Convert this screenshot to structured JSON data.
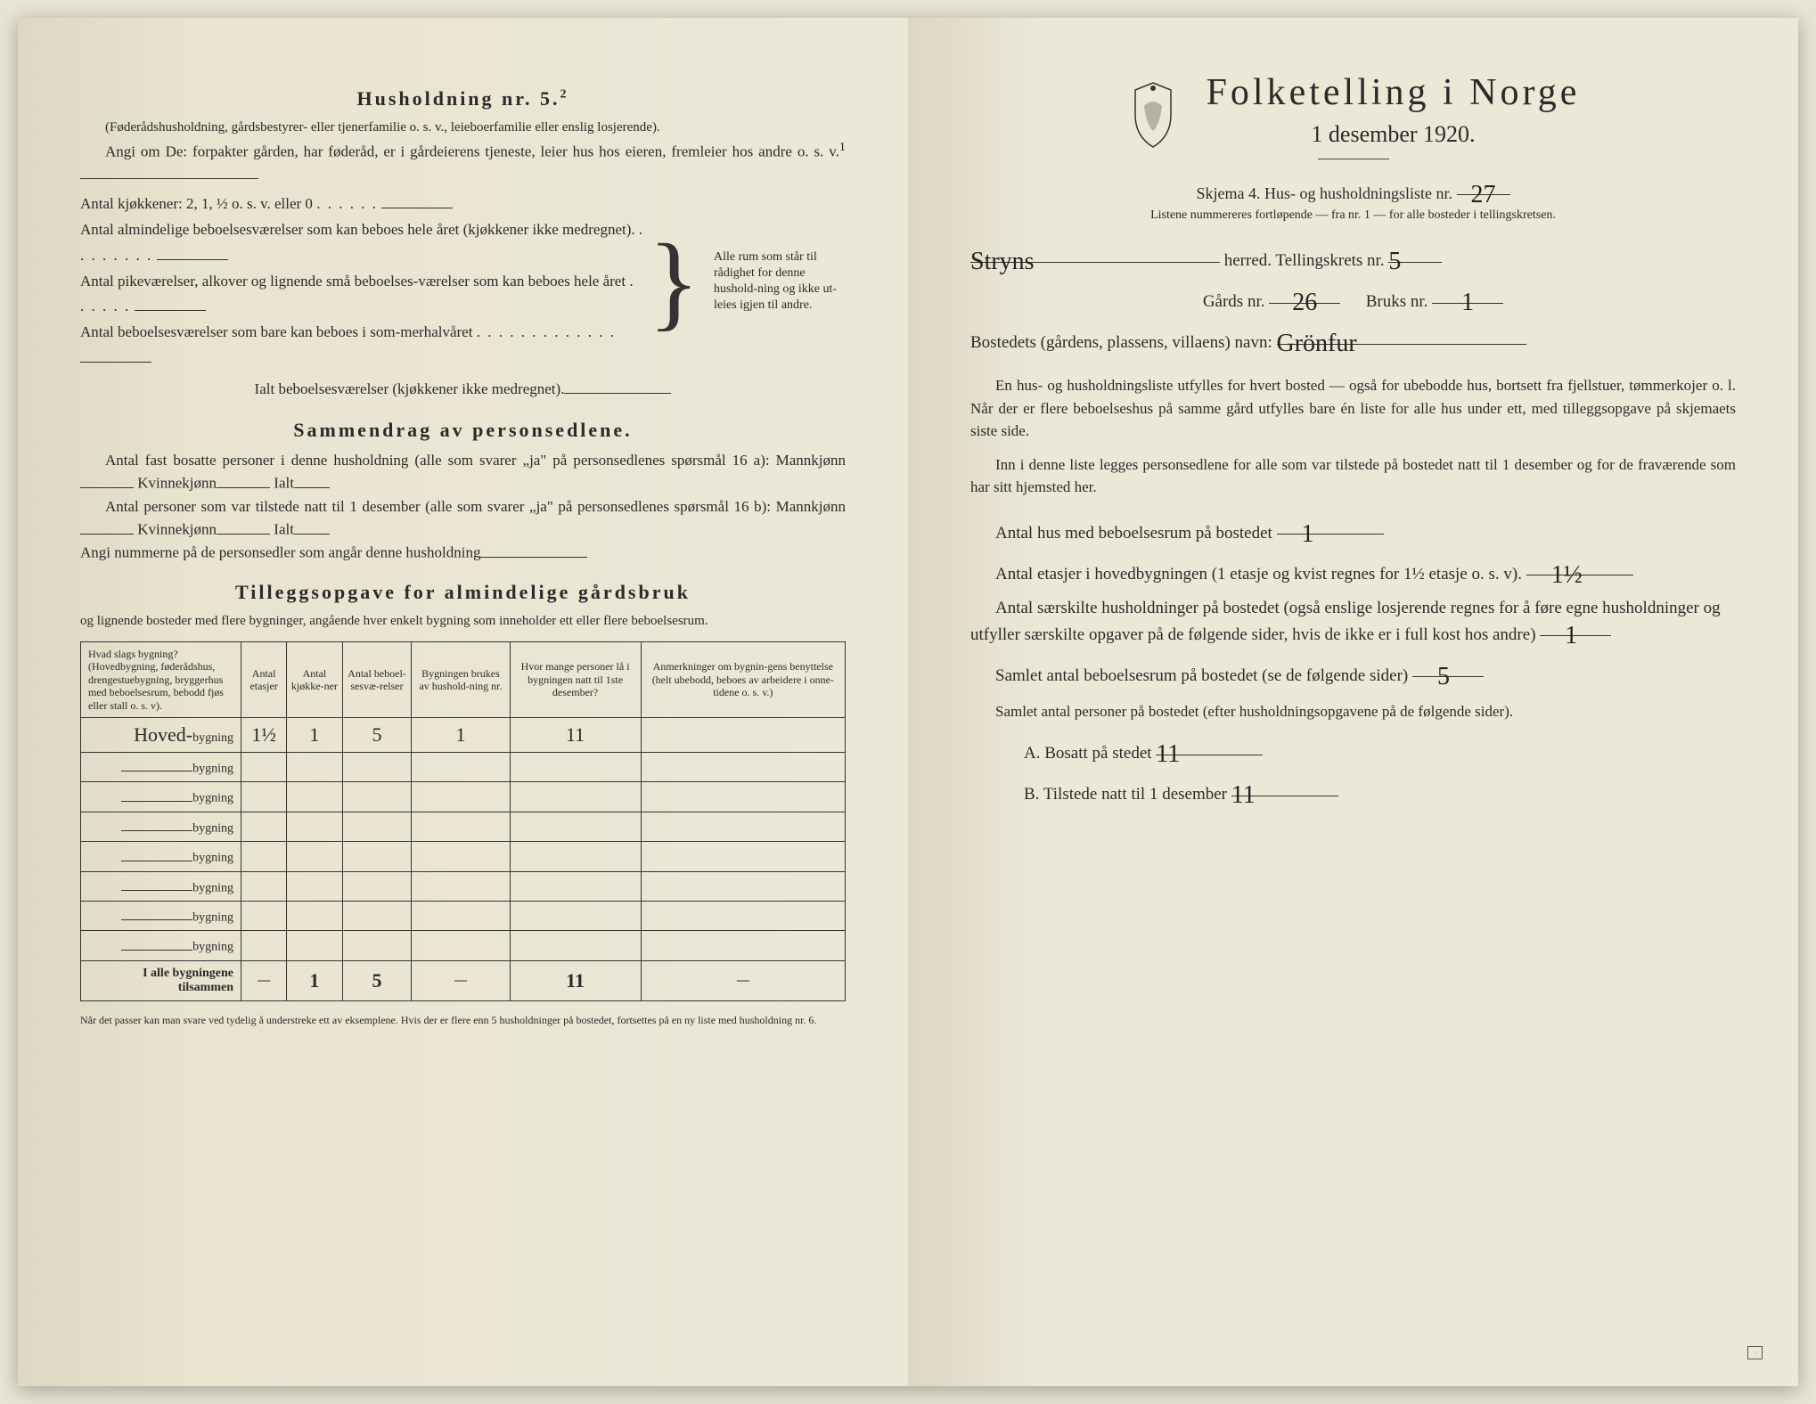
{
  "left": {
    "husholdning_title": "Husholdning nr. 5.",
    "husholdning_sup": "2",
    "husholdning_note": "(Føderådshusholdning, gårdsbestyrer- eller tjenerfamilie o. s. v., leieboerfamilie eller enslig losjerende).",
    "angi_line": "Angi om De:  forpakter gården, har føderåd, er i gårdeierens tjeneste, leier hus hos eieren, fremleier hos andre o. s. v.",
    "angi_sup": "1",
    "kjokken_line": "Antal kjøkkener: 2, 1, ½ o. s. v. eller 0",
    "room_lines": [
      "Antal almindelige beboelsesværelser som kan beboes hele året (kjøkkener ikke medregnet).",
      "Antal pikeværelser, alkover og lignende små beboelses-værelser som kan beboes hele året",
      "Antal beboelsesværelser som bare kan beboes i som-merhalvåret"
    ],
    "brace_text": "Alle rum som står til rådighet for denne hushold-ning og ikke ut-leies igjen til andre.",
    "ialt_line": "Ialt beboelsesværelser  (kjøkkener ikke medregnet).",
    "sammendrag_title": "Sammendrag av personsedlene.",
    "sammendrag_p1": "Antal fast bosatte personer i denne husholdning (alle som svarer „ja\" på personsedlenes spørsmål 16 a): Mannkjønn",
    "kvinne": "Kvinnekjønn",
    "ialt": "Ialt",
    "sammendrag_p2": "Antal personer som var tilstede natt til 1 desember (alle som svarer „ja\" på personsedlenes spørsmål 16 b): Mannkjønn",
    "angi_num": "Angi nummerne på de personsedler som angår denne husholdning",
    "tillegg_title": "Tilleggsopgave for almindelige gårdsbruk",
    "tillegg_sub": "og lignende bosteder med flere bygninger, angående hver enkelt bygning som inneholder ett eller flere beboelsesrum.",
    "table": {
      "headers": [
        "Hvad slags bygning?\n(Hovedbygning, føderådshus, drengestuebygning, bryggerhus med beboelsesrum, bebodd fjøs eller stall o. s. v).",
        "Antal etasjer",
        "Antal kjøkke-ner",
        "Antal beboel-sesvæ-relser",
        "Bygningen brukes av hushold-ning nr.",
        "Hvor mange personer lå i bygningen natt til 1ste desember?",
        "Anmerkninger om bygnin-gens benyttelse (helt ubebodd, beboes av arbeidere i onne-tidene o. s. v.)"
      ],
      "row_label_hw": "Hoved-",
      "row_suffix": "bygning",
      "rows": [
        [
          "1½",
          "1",
          "5",
          "1",
          "11",
          ""
        ],
        [
          "",
          "",
          "",
          "",
          "",
          ""
        ],
        [
          "",
          "",
          "",
          "",
          "",
          ""
        ],
        [
          "",
          "",
          "",
          "",
          "",
          ""
        ],
        [
          "",
          "",
          "",
          "",
          "",
          ""
        ],
        [
          "",
          "",
          "",
          "",
          "",
          ""
        ],
        [
          "",
          "",
          "",
          "",
          "",
          ""
        ],
        [
          "",
          "",
          "",
          "",
          "",
          ""
        ]
      ],
      "total_label": "I alle bygningene tilsammen",
      "total_row": [
        "—",
        "1",
        "5",
        "—",
        "11",
        "—"
      ]
    },
    "footnote": "Når det passer kan man svare ved tydelig å understreke ett av eksemplene.\nHvis der er flere enn 5 husholdninger på bostedet, fortsettes på en ny liste med husholdning nr. 6."
  },
  "right": {
    "title": "Folketelling i Norge",
    "date": "1 desember 1920.",
    "skjema": "Skjema 4.  Hus- og husholdningsliste nr.",
    "skjema_nr": "27",
    "listnote": "Listene nummereres fortløpende — fra nr. 1 — for alle bosteder i tellingskretsen.",
    "herred_hw": "Stryns",
    "herred_label": "herred.   Tellingskrets nr.",
    "krets_nr": "5",
    "gards_label": "Gårds nr.",
    "gards_nr": "26",
    "bruks_label": "Bruks nr.",
    "bruks_nr": "1",
    "bosted_label": "Bostedets (gårdens, plassens, villaens) navn:",
    "bosted_hw": "Grönfur",
    "para1": "En hus- og husholdningsliste utfylles for hvert bosted — også for ubebodde hus, bortsett fra fjellstuer, tømmerkojer o. l.  Når der er flere beboelseshus på samme gård utfylles bare én liste for alle hus under ett, med tilleggsopgave på skjemaets siste side.",
    "para2": "Inn i denne liste legges personsedlene for alle som var tilstede på bostedet natt til 1 desember og for de fraværende som har sitt hjemsted her.",
    "q1": "Antal hus med beboelsesrum på bostedet",
    "q1_hw": "1",
    "q2a": "Antal etasjer i hovedbygningen (1 etasje og kvist regnes for 1½ etasje o. s. v).",
    "q2_hw": "1½",
    "q3": "Antal særskilte husholdninger på bostedet (også enslige losjerende regnes for å føre egne husholdninger og utfyller særskilte opgaver på de følgende sider, hvis de ikke er i full kost hos andre)",
    "q3_hw": "1",
    "q4": "Samlet antal beboelsesrum på bostedet (se de følgende sider)",
    "q4_hw": "5",
    "q5": "Samlet antal personer på bostedet (efter husholdningsopgavene på de følgende sider).",
    "qA": "A.  Bosatt på stedet",
    "qA_hw": "11",
    "qB": "B.  Tilstede natt til 1 desember",
    "qB_hw": "11"
  }
}
